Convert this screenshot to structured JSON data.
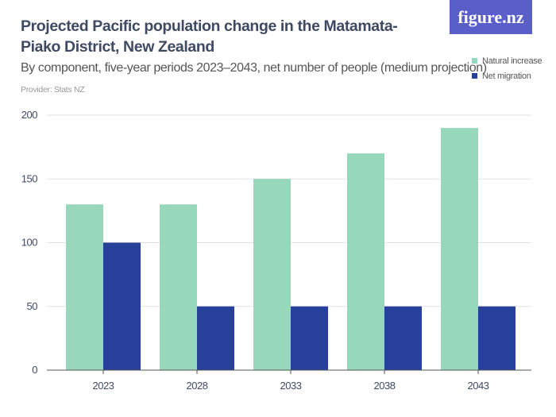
{
  "header": {
    "title": "Projected Pacific population change in the Matamata-Piako District, New Zealand",
    "subtitle": "By component, five-year periods 2023–2043, net number of people (medium projection)",
    "provider": "Provider: Stats NZ",
    "logo": "figure.nz"
  },
  "chart_data": {
    "type": "bar",
    "categories": [
      "2023",
      "2028",
      "2033",
      "2038",
      "2043"
    ],
    "series": [
      {
        "name": "Natural increase",
        "values": [
          130,
          130,
          150,
          170,
          190
        ],
        "color": "#97d7bb"
      },
      {
        "name": "Net migration",
        "values": [
          100,
          50,
          50,
          50,
          50
        ],
        "color": "#27419a"
      }
    ],
    "ylim": [
      0,
      200
    ],
    "yticks": [
      "0",
      "50",
      "100",
      "150",
      "200"
    ],
    "grid": true,
    "legend": "top-right"
  }
}
